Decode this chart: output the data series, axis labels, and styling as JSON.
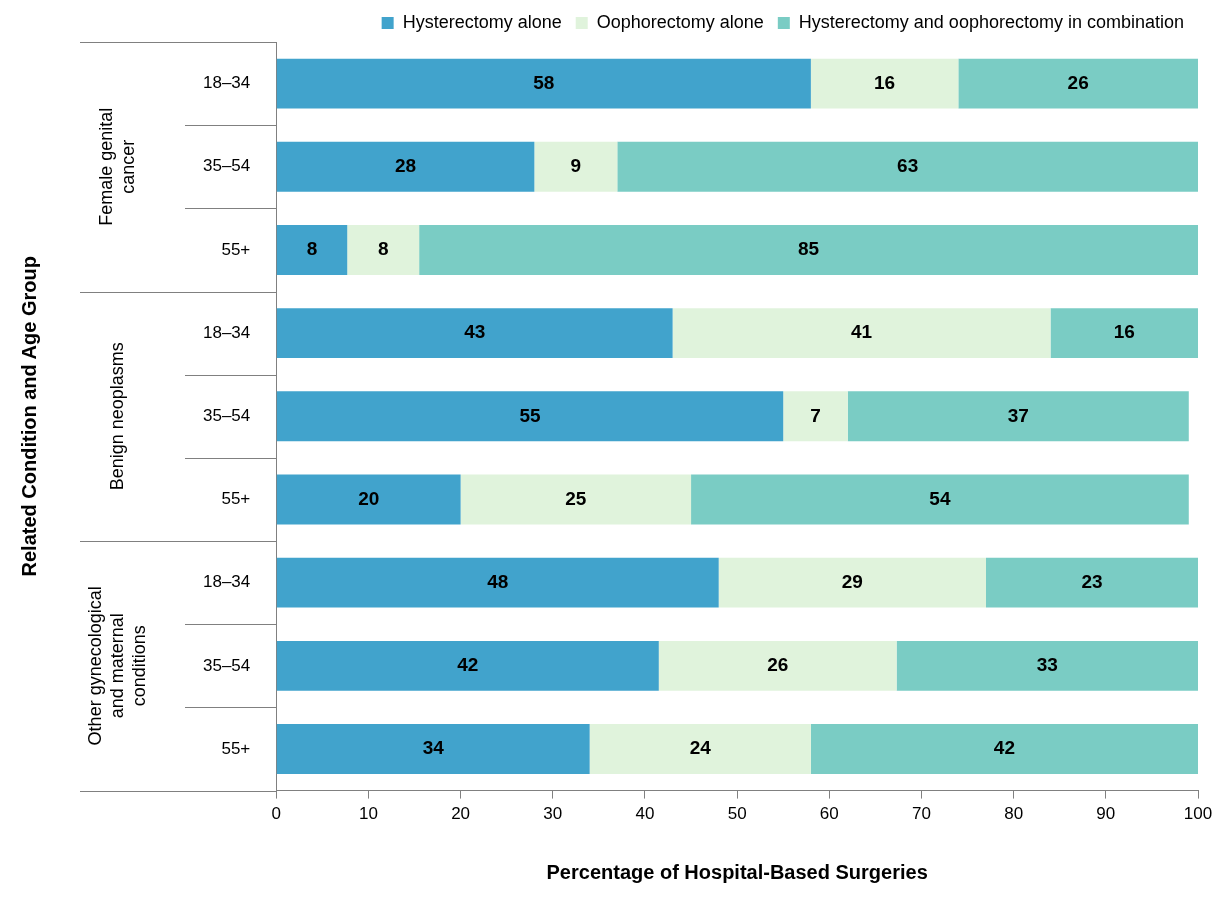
{
  "chart_data": {
    "type": "bar",
    "orientation": "horizontal",
    "stacked": true,
    "xlabel": "Percentage of Hospital-Based Surgeries",
    "categories": [
      "18–34",
      "35–54",
      "55+",
      "18–34",
      "35–54",
      "55+",
      "18–34",
      "35–54",
      "55+"
    ],
    "annotations": [
      "Related Condition and Age Group",
      "Female genital cancer",
      "Benign neoplasms",
      "Other gynecological and maternal conditions"
    ],
    "series": [
      {
        "name": "Hysterectomy alone",
        "color": "#41a3cc",
        "values": [
          58,
          28,
          7.7,
          43,
          55,
          20,
          48,
          41.5,
          34
        ],
        "value_labels": [
          "58",
          "28",
          "8",
          "43",
          "55",
          "20",
          "48",
          "42",
          "34"
        ]
      },
      {
        "name": "Oophorectomy alone",
        "color": "#e0f3dc",
        "values": [
          16,
          9,
          7.8,
          41,
          7,
          25,
          29,
          25.8,
          24
        ],
        "value_labels": [
          "16",
          "9",
          "8",
          "41",
          "7",
          "25",
          "29",
          "26",
          "24"
        ]
      },
      {
        "name": "Hysterectomy and oophorectomy in combination",
        "color": "#7accc4",
        "values": [
          26,
          63,
          84.5,
          16,
          37,
          54,
          23,
          32.7,
          42
        ],
        "value_labels": [
          "26",
          "63",
          "85",
          "16",
          "37",
          "54",
          "23",
          "33",
          "42"
        ]
      }
    ],
    "xlim": [
      0,
      100
    ],
    "xticks": [
      0,
      10,
      20,
      30,
      40,
      50,
      60,
      70,
      80,
      90,
      100
    ],
    "grid": false,
    "legend": "top right"
  }
}
